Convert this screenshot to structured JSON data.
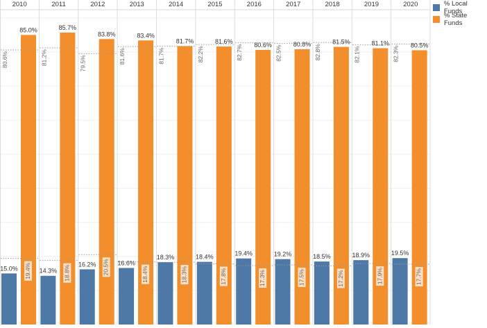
{
  "chart_data": {
    "type": "bar",
    "categories": [
      "2010",
      "2011",
      "2012",
      "2013",
      "2014",
      "2015",
      "2016",
      "2017",
      "2018",
      "2019",
      "2020"
    ],
    "series": [
      {
        "name": "% Local Funds",
        "color": "#4e79a7",
        "values": [
          15.0,
          14.3,
          16.2,
          16.6,
          18.3,
          18.4,
          19.4,
          19.2,
          18.5,
          18.9,
          19.5
        ],
        "labels": [
          "15.0%",
          "14.3%",
          "16.2%",
          "16.6%",
          "18.3%",
          "18.4%",
          "19.4%",
          "19.2%",
          "18.5%",
          "18.9%",
          "19.5%"
        ],
        "reference_values": [
          19.4,
          18.8,
          20.5,
          18.4,
          18.3,
          17.8,
          17.3,
          17.5,
          17.2,
          17.9,
          17.7
        ],
        "reference_labels": [
          "19.4%",
          "18.8%",
          "20.5%",
          "18.4%",
          "18.3%",
          "17.8%",
          "17.3%",
          "17.5%",
          "17.2%",
          "17.9%",
          "17.7%"
        ]
      },
      {
        "name": "% State Funds",
        "color": "#f28e2b",
        "values": [
          85.0,
          85.7,
          83.8,
          83.4,
          81.7,
          81.6,
          80.6,
          80.8,
          81.5,
          81.1,
          80.5
        ],
        "labels": [
          "85.0%",
          "85.7%",
          "83.8%",
          "83.4%",
          "81.7%",
          "81.6%",
          "80.6%",
          "80.8%",
          "81.5%",
          "81.1%",
          "80.5%"
        ],
        "reference_values": [
          80.6,
          81.2,
          79.5,
          81.6,
          81.7,
          82.2,
          82.7,
          82.5,
          82.8,
          82.1,
          82.3
        ],
        "reference_labels": [
          "80.6%",
          "81.2%",
          "79.5%",
          "81.6%",
          "81.7%",
          "82.2%",
          "82.7%",
          "82.5%",
          "82.8%",
          "82.1%",
          "82.3%"
        ]
      }
    ],
    "ylim": [
      0,
      92
    ],
    "grid": true,
    "legend_position": "top-right"
  }
}
